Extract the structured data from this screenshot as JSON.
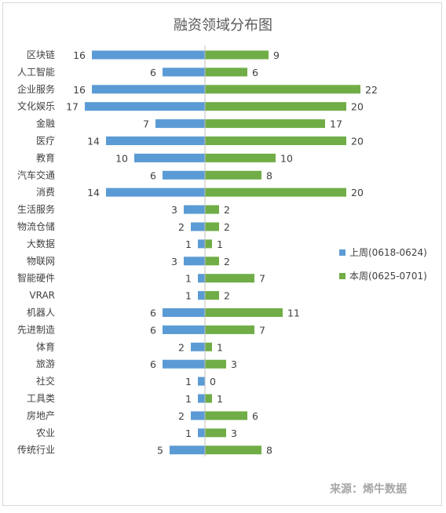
{
  "chart_data": {
    "type": "bar",
    "orientation": "horizontal-butterfly",
    "title": "融资领域分布图",
    "categories": [
      "区块链",
      "人工智能",
      "企业服务",
      "文化娱乐",
      "金融",
      "医疗",
      "教育",
      "汽车交通",
      "消费",
      "生活服务",
      "物流仓储",
      "大数据",
      "物联网",
      "智能硬件",
      "VRAR",
      "机器人",
      "先进制造",
      "体育",
      "旅游",
      "社交",
      "工具类",
      "房地产",
      "农业",
      "传统行业"
    ],
    "series": [
      {
        "name": "上周(0618-0624)",
        "color": "#5b9bd5",
        "values": [
          16,
          6,
          16,
          17,
          7,
          14,
          10,
          6,
          14,
          3,
          2,
          1,
          3,
          1,
          1,
          6,
          6,
          2,
          6,
          1,
          1,
          2,
          1,
          5
        ]
      },
      {
        "name": "本周(0625-0701)",
        "color": "#70ad47",
        "values": [
          9,
          6,
          22,
          20,
          17,
          20,
          10,
          8,
          20,
          2,
          2,
          1,
          2,
          7,
          2,
          11,
          7,
          1,
          3,
          0,
          1,
          6,
          3,
          8
        ]
      }
    ],
    "legend_position": "right",
    "grid": false
  },
  "source_text": "来源：烯牛数据"
}
